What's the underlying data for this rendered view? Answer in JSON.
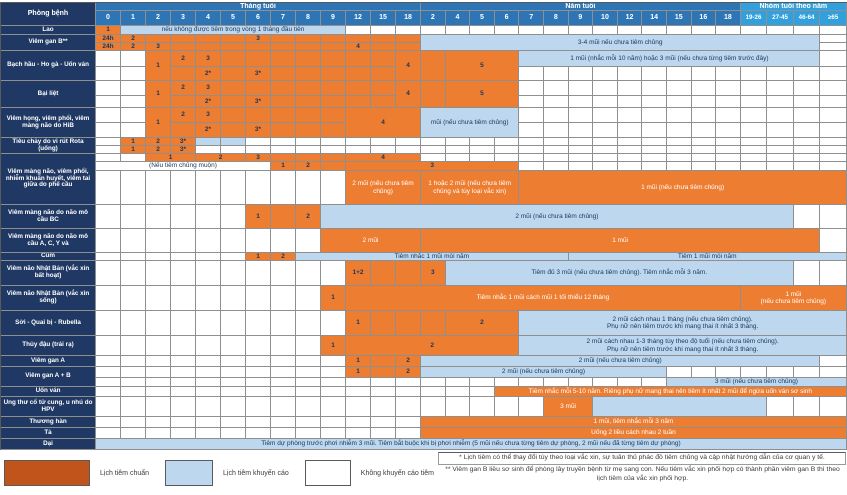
{
  "table": {
    "header": {
      "corner": "Phòng bệnh",
      "banners": [
        {
          "t": "Tháng tuổi",
          "c": 1,
          "s": 13,
          "cls": "hdr"
        },
        {
          "t": "Năm tuổi",
          "c": 14,
          "s": 13,
          "cls": "hdr"
        },
        {
          "t": "Nhóm tuổi theo năm",
          "c": 27,
          "s": 4,
          "cls": "grp"
        }
      ],
      "months": [
        "0",
        "1",
        "2",
        "3",
        "4",
        "5",
        "6",
        "7",
        "8",
        "9",
        "12",
        "15",
        "18"
      ],
      "years": [
        "2",
        "4",
        "5",
        "6",
        "7",
        "8",
        "9",
        "10",
        "12",
        "14",
        "15",
        "16",
        "18"
      ],
      "groups": [
        "19-26",
        "27-45",
        "46-64",
        "≥65"
      ]
    },
    "labels": [
      {
        "t": "Phòng bệnh",
        "row": 1,
        "rs": 2,
        "extra": "head"
      },
      {
        "t": "Lao",
        "row": 3,
        "rs": 1
      },
      {
        "t": "Viêm gan B**",
        "row": 4,
        "rs": 2
      },
      {
        "t": "Bạch hầu - Ho gà - Uốn ván",
        "row": 6,
        "rs": 2
      },
      {
        "t": "Bại liệt",
        "row": 8,
        "rs": 2
      },
      {
        "t": "Viêm họng, viêm phổi, viêm màng não do HiB",
        "row": 10,
        "rs": 2
      },
      {
        "t": "Tiêu chảy do vi rút Rota (uống)",
        "row": 12,
        "rs": 2
      },
      {
        "t": "Viêm màng não, viêm phổi, nhiễm khuẩn huyết, viêm tai giữa do phế cầu",
        "row": 14,
        "rs": 3
      },
      {
        "t": "Viêm màng não do não mô cầu BC",
        "row": 17,
        "rs": 1
      },
      {
        "t": "Viêm màng não do não mô cầu A, C, Y và",
        "row": 18,
        "rs": 1
      },
      {
        "t": "Cúm",
        "row": 19,
        "rs": 1
      },
      {
        "t": "Viêm não Nhật Bản (vắc xin bất hoạt)",
        "row": 20,
        "rs": 1
      },
      {
        "t": "Viêm não Nhật Bản (vắc xin sống)",
        "row": 21,
        "rs": 1
      },
      {
        "t": "Sởi - Quai bị - Rubella",
        "row": 22,
        "rs": 1
      },
      {
        "t": "Thủy đậu (trái rạ)",
        "row": 23,
        "rs": 1
      },
      {
        "t": "Viêm gan A",
        "row": 24,
        "rs": 1
      },
      {
        "t": "Viêm gan A + B",
        "row": 25,
        "rs": 2
      },
      {
        "t": "Uốn ván",
        "row": 27,
        "rs": 1
      },
      {
        "t": "Ung thư cổ tử cung, u nhú do HPV",
        "row": 28,
        "rs": 1
      },
      {
        "t": "Thương hàn",
        "row": 29,
        "rs": 1
      },
      {
        "t": "Tả",
        "row": 30,
        "rs": 1
      },
      {
        "t": "Dại",
        "row": 31,
        "rs": 1
      }
    ],
    "rows": {
      "3": [
        {
          "c": 1,
          "cls": "o",
          "t": "1"
        },
        {
          "c": 2,
          "s": 9,
          "cls": "b",
          "t": "nếu không được tiêm trong vòng 1 tháng đầu tiên"
        }
      ],
      "4": [
        {
          "c": 1,
          "cls": "o",
          "t": "24h"
        },
        {
          "c": 2,
          "cls": "o",
          "t": "2"
        },
        {
          "c": 3,
          "cls": "o"
        },
        {
          "c": 4,
          "cls": "o"
        },
        {
          "c": 5,
          "cls": "o"
        },
        {
          "c": 6,
          "cls": "o"
        },
        {
          "c": 7,
          "cls": "o",
          "t": "3"
        },
        {
          "c": 8,
          "cls": "o"
        },
        {
          "c": 9,
          "cls": "o"
        },
        {
          "c": 10,
          "cls": "o"
        },
        {
          "c": 11,
          "cls": "o"
        },
        {
          "c": 12,
          "cls": "o"
        },
        {
          "c": 13,
          "cls": "o"
        },
        {
          "c": 14,
          "s": 16,
          "r": 2,
          "cls": "b",
          "t": "3-4 mũi nếu chưa tiêm chủng"
        }
      ],
      "5": [
        {
          "c": 1,
          "cls": "o",
          "t": "24h"
        },
        {
          "c": 2,
          "cls": "o",
          "t": "2"
        },
        {
          "c": 3,
          "cls": "o",
          "t": "3"
        },
        {
          "c": 4,
          "cls": "o"
        },
        {
          "c": 5,
          "cls": "o"
        },
        {
          "c": 6,
          "cls": "o"
        },
        {
          "c": 7,
          "cls": "o"
        },
        {
          "c": 8,
          "cls": "o"
        },
        {
          "c": 9,
          "cls": "o"
        },
        {
          "c": 10,
          "cls": "o"
        },
        {
          "c": 11,
          "cls": "o",
          "t": "4"
        },
        {
          "c": 12,
          "cls": "o"
        },
        {
          "c": 13,
          "cls": "o"
        }
      ],
      "6": [
        {
          "c": 3,
          "r": 2,
          "cls": "o",
          "t": "1"
        },
        {
          "c": 4,
          "cls": "o",
          "t": "2"
        },
        {
          "c": 5,
          "cls": "o",
          "t": "3"
        },
        {
          "c": 6,
          "cls": "o"
        },
        {
          "c": 7,
          "cls": "o"
        },
        {
          "c": 8,
          "cls": "o"
        },
        {
          "c": 9,
          "cls": "o"
        },
        {
          "c": 10,
          "cls": "o"
        },
        {
          "c": 11,
          "cls": "o"
        },
        {
          "c": 12,
          "cls": "o"
        },
        {
          "c": 13,
          "r": 2,
          "cls": "o",
          "t": "4"
        },
        {
          "c": 14,
          "r": 2,
          "cls": "o"
        },
        {
          "c": 15,
          "s": 3,
          "r": 2,
          "cls": "o",
          "t": "5"
        },
        {
          "c": 18,
          "s": 12,
          "cls": "b",
          "t": "1 mũi (nhắc mỗi 10 năm) hoặc 3 mũi (nếu chưa từng tiêm trước đây)"
        }
      ],
      "7": [
        {
          "c": 4,
          "cls": "o"
        },
        {
          "c": 5,
          "cls": "o",
          "t": "2*"
        },
        {
          "c": 6,
          "cls": "o"
        },
        {
          "c": 7,
          "cls": "o",
          "t": "3*"
        },
        {
          "c": 8,
          "cls": "o"
        },
        {
          "c": 9,
          "cls": "o"
        },
        {
          "c": 10,
          "cls": "o"
        },
        {
          "c": 11,
          "cls": "o"
        },
        {
          "c": 12,
          "cls": "o"
        }
      ],
      "8": [
        {
          "c": 3,
          "r": 2,
          "cls": "o",
          "t": "1"
        },
        {
          "c": 4,
          "cls": "o",
          "t": "2"
        },
        {
          "c": 5,
          "cls": "o",
          "t": "3"
        },
        {
          "c": 6,
          "cls": "o"
        },
        {
          "c": 7,
          "cls": "o"
        },
        {
          "c": 8,
          "cls": "o"
        },
        {
          "c": 9,
          "cls": "o"
        },
        {
          "c": 10,
          "cls": "o"
        },
        {
          "c": 11,
          "cls": "o"
        },
        {
          "c": 12,
          "cls": "o"
        },
        {
          "c": 13,
          "r": 2,
          "cls": "o",
          "t": "4"
        },
        {
          "c": 14,
          "r": 2,
          "cls": "o"
        },
        {
          "c": 15,
          "s": 3,
          "r": 2,
          "cls": "o",
          "t": "5"
        }
      ],
      "9": [
        {
          "c": 4,
          "cls": "o"
        },
        {
          "c": 5,
          "cls": "o",
          "t": "2*"
        },
        {
          "c": 6,
          "cls": "o"
        },
        {
          "c": 7,
          "cls": "o",
          "t": "3*"
        },
        {
          "c": 8,
          "cls": "o"
        },
        {
          "c": 9,
          "cls": "o"
        },
        {
          "c": 10,
          "cls": "o"
        },
        {
          "c": 11,
          "cls": "o"
        },
        {
          "c": 12,
          "cls": "o"
        }
      ],
      "10": [
        {
          "c": 3,
          "r": 2,
          "cls": "o",
          "t": "1"
        },
        {
          "c": 4,
          "cls": "o",
          "t": "2"
        },
        {
          "c": 5,
          "cls": "o",
          "t": "3"
        },
        {
          "c": 6,
          "cls": "o"
        },
        {
          "c": 7,
          "cls": "o"
        },
        {
          "c": 8,
          "cls": "o"
        },
        {
          "c": 9,
          "cls": "o"
        },
        {
          "c": 10,
          "cls": "o"
        },
        {
          "c": 11,
          "s": 3,
          "r": 2,
          "cls": "o",
          "t": "4"
        },
        {
          "c": 14,
          "s": 4,
          "r": 2,
          "cls": "b",
          "t": "mũi (nếu chưa tiêm chủng)"
        }
      ],
      "11": [
        {
          "c": 4,
          "cls": "o"
        },
        {
          "c": 5,
          "cls": "o",
          "t": "2*"
        },
        {
          "c": 6,
          "cls": "o"
        },
        {
          "c": 7,
          "cls": "o",
          "t": "3*"
        },
        {
          "c": 8,
          "cls": "o"
        },
        {
          "c": 9,
          "cls": "o"
        },
        {
          "c": 10,
          "cls": "o"
        }
      ],
      "12": [
        {
          "c": 2,
          "cls": "o",
          "t": "1"
        },
        {
          "c": 3,
          "cls": "o",
          "t": "2"
        },
        {
          "c": 4,
          "cls": "o",
          "t": "3*"
        },
        {
          "c": 5,
          "cls": "b"
        },
        {
          "c": 6,
          "cls": "b"
        }
      ],
      "13": [
        {
          "c": 2,
          "cls": "o",
          "t": "1"
        },
        {
          "c": 3,
          "cls": "o",
          "t": "2"
        },
        {
          "c": 4,
          "cls": "o",
          "t": "3*"
        }
      ],
      "14": [
        {
          "c": 3,
          "s": 2,
          "cls": "o",
          "t": "1"
        },
        {
          "c": 5,
          "s": 2,
          "cls": "o",
          "t": "2"
        },
        {
          "c": 7,
          "cls": "o",
          "t": "3"
        },
        {
          "c": 8,
          "cls": "o"
        },
        {
          "c": 9,
          "cls": "o"
        },
        {
          "c": 10,
          "cls": "o"
        },
        {
          "c": 11,
          "s": 3,
          "cls": "o",
          "t": "4"
        }
      ],
      "15": [
        {
          "c": 1,
          "s": 7,
          "cls": "w",
          "t": "(Nếu tiêm chủng muộn)"
        },
        {
          "c": 8,
          "cls": "o",
          "t": "1"
        },
        {
          "c": 9,
          "cls": "o",
          "t": "2"
        },
        {
          "c": 10,
          "cls": "o"
        },
        {
          "c": 11,
          "s": 7,
          "cls": "o",
          "t": "3"
        }
      ],
      "16": [
        {
          "c": 11,
          "s": 3,
          "cls": "o wt",
          "t": "2 mũi (nếu chưa tiêm chủng)"
        },
        {
          "c": 14,
          "s": 4,
          "cls": "o wt",
          "t": "1 hoặc 2 mũi (nếu chưa tiêm chủng và tùy loại vắc xin)"
        },
        {
          "c": 18,
          "s": 13,
          "cls": "o wt",
          "t": "1 mũi (nếu chưa tiêm chủng)"
        }
      ],
      "17": [
        {
          "c": 7,
          "cls": "o",
          "t": "1"
        },
        {
          "c": 8,
          "cls": "o"
        },
        {
          "c": 9,
          "cls": "o",
          "t": "2"
        },
        {
          "c": 10,
          "s": 19,
          "cls": "b",
          "t": "2 mũi (nếu chưa tiêm chủng)"
        }
      ],
      "18": [
        {
          "c": 10,
          "s": 4,
          "cls": "o wt",
          "t": "2 mũi"
        },
        {
          "c": 14,
          "s": 16,
          "cls": "o wt",
          "t": "1 mũi"
        }
      ],
      "19": [
        {
          "c": 7,
          "cls": "o",
          "t": "1"
        },
        {
          "c": 8,
          "cls": "o",
          "t": "2"
        },
        {
          "c": 9,
          "s": 11,
          "cls": "b",
          "t": "Tiêm nhắc 1 mũi mỗi năm"
        },
        {
          "c": 20,
          "s": 11,
          "cls": "b",
          "t": "Tiêm 1 mũi mỗi năm"
        }
      ],
      "20": [
        {
          "c": 11,
          "cls": "o",
          "t": "1+2"
        },
        {
          "c": 12,
          "cls": "o"
        },
        {
          "c": 13,
          "cls": "o"
        },
        {
          "c": 14,
          "cls": "o",
          "t": "3"
        },
        {
          "c": 15,
          "s": 14,
          "cls": "b",
          "t": "Tiêm đủ 3 mũi (nếu chưa tiêm chủng). Tiêm nhắc mỗi 3 năm."
        }
      ],
      "21": [
        {
          "c": 10,
          "cls": "o",
          "t": "1"
        },
        {
          "c": 11,
          "s": 16,
          "cls": "o wt",
          "t": "Tiêm nhắc 1 mũi cách mũi 1 tối thiểu 12 tháng"
        },
        {
          "c": 27,
          "s": 4,
          "cls": "o wt",
          "t": "1 mũi\n(nếu chưa tiêm chủng)"
        }
      ],
      "22": [
        {
          "c": 11,
          "cls": "o",
          "t": "1"
        },
        {
          "c": 12,
          "cls": "o"
        },
        {
          "c": 13,
          "cls": "o"
        },
        {
          "c": 14,
          "cls": "o"
        },
        {
          "c": 15,
          "s": 3,
          "cls": "o",
          "t": "2"
        },
        {
          "c": 18,
          "s": 13,
          "cls": "b",
          "t": "2 mũi cách nhau 1 tháng (nếu chưa tiêm chủng).\nPhụ nữ nên tiêm trước khi mang thai ít nhất 3 tháng."
        }
      ],
      "23": [
        {
          "c": 10,
          "cls": "o",
          "t": "1"
        },
        {
          "c": 11,
          "s": 7,
          "cls": "o",
          "t": "2"
        },
        {
          "c": 18,
          "s": 13,
          "cls": "b",
          "t": "2 mũi cách nhau 1-3 tháng tùy theo độ tuổi (nếu chưa tiêm chủng).\nPhụ nữ nên tiêm trước khi mang thai ít nhất 3 tháng."
        }
      ],
      "24": [
        {
          "c": 11,
          "cls": "o",
          "t": "1"
        },
        {
          "c": 12,
          "cls": "o"
        },
        {
          "c": 13,
          "cls": "o",
          "t": "2"
        },
        {
          "c": 14,
          "s": 16,
          "cls": "b",
          "t": "2 mũi (nếu chưa tiêm chủng)"
        }
      ],
      "25": [
        {
          "c": 11,
          "cls": "o",
          "t": "1"
        },
        {
          "c": 12,
          "cls": "o"
        },
        {
          "c": 13,
          "cls": "o",
          "t": "2"
        },
        {
          "c": 14,
          "s": 10,
          "cls": "b",
          "t": "2 mũi (nếu chưa tiêm chủng)"
        }
      ],
      "26": [
        {
          "c": 24,
          "s": 7,
          "cls": "b",
          "t": "3 mũi (nếu chưa tiêm chủng)"
        }
      ],
      "27": [
        {
          "c": 17,
          "s": 14,
          "cls": "o wt nw",
          "t": "Tiêm nhắc mỗi 5-10 năm. Riêng phụ nữ mang thai nên tiêm ít nhất 2 mũi để ngừa uốn ván sơ sinh"
        }
      ],
      "28": [
        {
          "c": 19,
          "s": 2,
          "cls": "o wt",
          "t": "3 mũi"
        },
        {
          "c": 21,
          "s": 7,
          "cls": "b"
        }
      ],
      "29": [
        {
          "c": 14,
          "s": 17,
          "cls": "o wt",
          "t": "1 mũi, tiêm nhắc mỗi 3 năm"
        }
      ],
      "30": [
        {
          "c": 14,
          "s": 17,
          "cls": "o wt",
          "t": "Uống 2 liều cách nhau 2 tuần"
        }
      ],
      "31": [
        {
          "c": 1,
          "s": 30,
          "cls": "b",
          "t": "Tiêm dự phòng trước phơi nhiễm 3 mũi. Tiêm bắt buộc khi bị phơi nhiễm (5 mũi nếu chưa từng tiêm dự phòng, 2 mũi nếu đã từng tiêm dự phòng)"
        }
      ]
    }
  },
  "legend": {
    "standard": "Lịch tiêm chuẩn",
    "recommended": "Lịch tiêm khuyến cáo",
    "not_recommended": "Không khuyến cáo tiêm"
  },
  "footnotes": {
    "star": "* Lịch tiêm có thể thay đổi tùy theo loại vắc xin, sự tuân thủ phác đồ tiêm chủng và cập nhật hướng dẫn của cơ quan y tế.",
    "double_star": "** Viêm gan B liều sơ sinh để phòng lây truyền bệnh từ mẹ sang con. Nếu tiêm vắc xin phối hợp có thành phần viêm gan B thì theo lịch tiêm của vắc xin phối hợp."
  },
  "colors": {
    "standard_schedule_orange": "#ED7D31",
    "legend_standard_swatch": "#C0541B",
    "recommended_blue": "#BDD7EE",
    "header_blue": "#2E75B6",
    "agegroup_header_blue": "#31A0DC",
    "disease_label_navy": "#1F3864",
    "cell_text_navy": "#17365D"
  }
}
